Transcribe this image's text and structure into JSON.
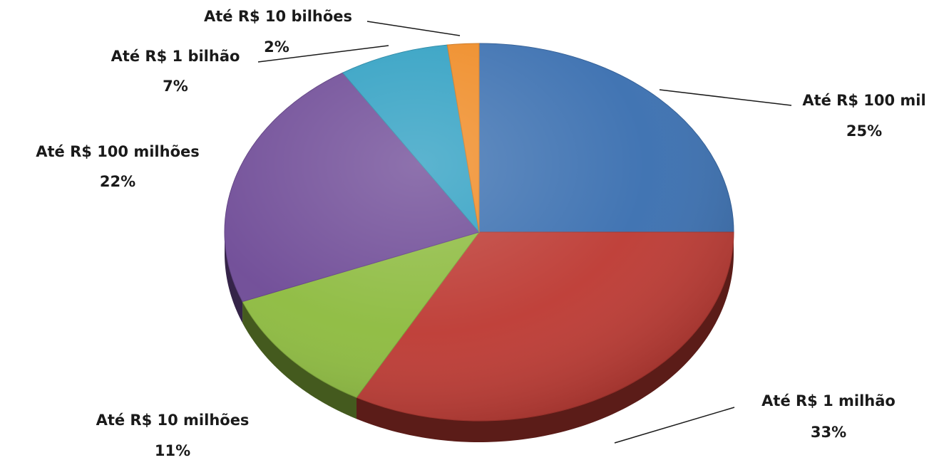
{
  "chart_data": {
    "type": "pie",
    "title": "",
    "start_angle_deg": 90,
    "direction": "clockwise",
    "slices": [
      {
        "label": "Até R$ 100 mil",
        "percent_label": "25%",
        "value": 25,
        "color": "#3a6fb0"
      },
      {
        "label": "Até R$ 1 milhão",
        "percent_label": "33%",
        "value": 33,
        "color": "#bd3a33"
      },
      {
        "label": "Até R$ 10 milhões",
        "percent_label": "11%",
        "value": 11,
        "color": "#8dbb3f"
      },
      {
        "label": "Até R$ 100 milhões",
        "percent_label": "22%",
        "value": 22,
        "color": "#6e4a96"
      },
      {
        "label": "Até R$ 1 bilhão",
        "percent_label": "7%",
        "value": 7,
        "color": "#2e9fc2"
      },
      {
        "label": "Até R$ 10 bilhões",
        "percent_label": "2%",
        "value": 2,
        "color": "#ef8a23"
      }
    ],
    "legend": "none"
  }
}
